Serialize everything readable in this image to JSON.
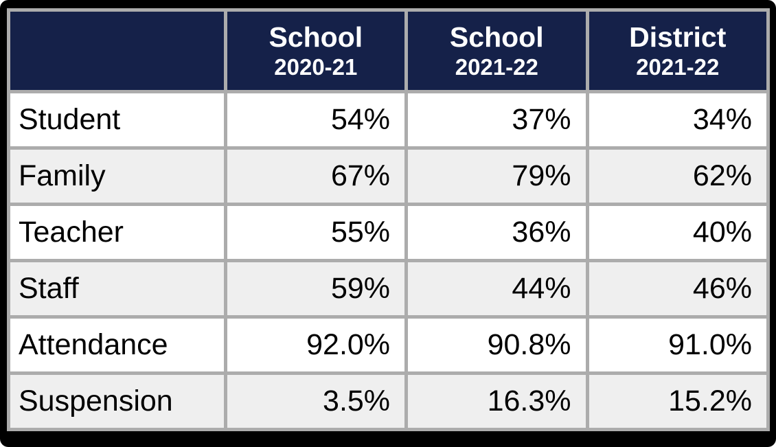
{
  "colors": {
    "frame_black": "#000000",
    "border_gray": "#ACACAC",
    "header_bg": "#152149",
    "header_text": "#FFFFFF",
    "row_white": "#FFFFFF",
    "row_gray": "#EFEFEF",
    "cell_text": "#000000"
  },
  "chart_data": {
    "type": "table",
    "title": "",
    "header": [
      {
        "title": "",
        "subtitle": ""
      },
      {
        "title": "School",
        "subtitle": "2020-21"
      },
      {
        "title": "School",
        "subtitle": "2021-22"
      },
      {
        "title": "District",
        "subtitle": "2021-22"
      }
    ],
    "rows": [
      {
        "label": "Student",
        "values": [
          "54%",
          "37%",
          "34%"
        ]
      },
      {
        "label": "Family",
        "values": [
          "67%",
          "79%",
          "62%"
        ]
      },
      {
        "label": "Teacher",
        "values": [
          "55%",
          "36%",
          "40%"
        ]
      },
      {
        "label": "Staff",
        "values": [
          "59%",
          "44%",
          "46%"
        ]
      },
      {
        "label": "Attendance",
        "values": [
          "92.0%",
          "90.8%",
          "91.0%"
        ]
      },
      {
        "label": "Suspension",
        "values": [
          "3.5%",
          "16.3%",
          "15.2%"
        ]
      }
    ],
    "layout": {
      "row_striping": [
        "white",
        "light-gray"
      ],
      "value_alignment": "right",
      "label_alignment": "left",
      "grid": true
    }
  }
}
